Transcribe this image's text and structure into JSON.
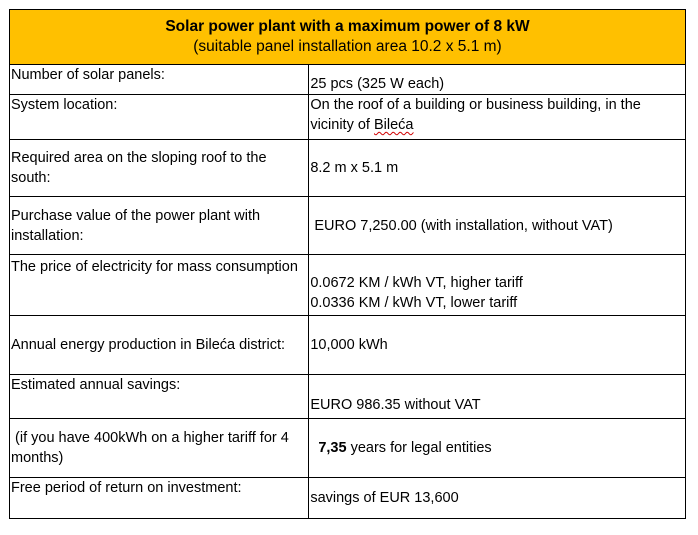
{
  "header": {
    "title": "Solar power plant with a maximum power of 8 kW",
    "subtitle": "(suitable panel installation area 10.2 x 5.1 m)"
  },
  "rows": [
    {
      "label": [
        "Number of solar panels:"
      ],
      "value": [
        "25 pcs (325 W each)"
      ]
    },
    {
      "label": [
        "System location:"
      ],
      "value_prefix": "On the roof of a building or business building, in the vicinity of ",
      "value_marked": "Bileća",
      "value_suffix": ""
    },
    {
      "label": [
        "Required area on the sloping roof to the south:"
      ],
      "value": [
        "8.2 m x 5.1 m"
      ]
    },
    {
      "label": [
        "Purchase value of the power plant with installation:"
      ],
      "value": [
        " EURO 7,250.00 (with installation, without VAT)"
      ]
    },
    {
      "label": [
        "The price of electricity for mass consumption"
      ],
      "value": [
        "0.0672 KM / kWh VT, higher tariff",
        "0.0336 KM / kWh VT, lower tariff"
      ]
    },
    {
      "label": [
        "Annual energy production in Bileća district:"
      ],
      "value": [
        "10,000 kWh"
      ]
    },
    {
      "label": [
        "Estimated annual savings:"
      ],
      "value": [
        "EURO 986.35 without VAT"
      ]
    },
    {
      "label": [
        " (if you have 400kWh on a higher tariff for 4 months)"
      ],
      "value_bold": "7,35",
      "value_rest": " years for legal entities"
    },
    {
      "label": [
        "Free period of return on investment:"
      ],
      "value": [
        "savings of EUR 13,600"
      ]
    }
  ],
  "colors": {
    "header_background": "#ffc000",
    "border": "#000000",
    "spellcheck_underline": "#d00000"
  }
}
